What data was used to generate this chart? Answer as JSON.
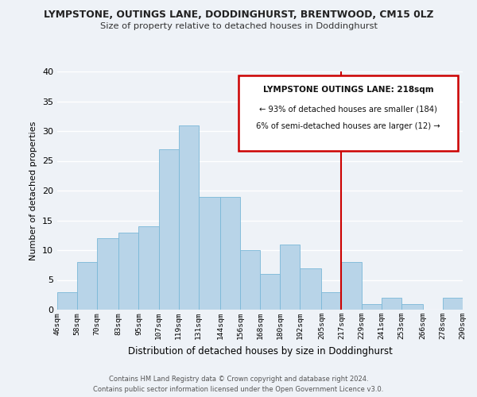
{
  "title_line1": "LYMPSTONE, OUTINGS LANE, DODDINGHURST, BRENTWOOD, CM15 0LZ",
  "title_line2": "Size of property relative to detached houses in Doddinghurst",
  "xlabel": "Distribution of detached houses by size in Doddinghurst",
  "ylabel": "Number of detached properties",
  "bin_edges": [
    46,
    58,
    70,
    83,
    95,
    107,
    119,
    131,
    144,
    156,
    168,
    180,
    192,
    205,
    217,
    229,
    241,
    253,
    266,
    278,
    290
  ],
  "bin_heights": [
    3,
    8,
    12,
    13,
    14,
    27,
    31,
    19,
    19,
    10,
    6,
    11,
    7,
    3,
    8,
    1,
    2,
    1,
    0,
    2
  ],
  "bar_color": "#b8d4e8",
  "bar_edge_color": "#7ab8d8",
  "vline_x": 217,
  "vline_color": "#cc0000",
  "ylim": [
    0,
    40
  ],
  "yticks": [
    0,
    5,
    10,
    15,
    20,
    25,
    30,
    35,
    40
  ],
  "x_tick_labels": [
    "46sqm",
    "58sqm",
    "70sqm",
    "83sqm",
    "95sqm",
    "107sqm",
    "119sqm",
    "131sqm",
    "144sqm",
    "156sqm",
    "168sqm",
    "180sqm",
    "192sqm",
    "205sqm",
    "217sqm",
    "229sqm",
    "241sqm",
    "253sqm",
    "266sqm",
    "278sqm",
    "290sqm"
  ],
  "annotation_title": "LYMPSTONE OUTINGS LANE: 218sqm",
  "annotation_line1": "← 93% of detached houses are smaller (184)",
  "annotation_line2": "6% of semi-detached houses are larger (12) →",
  "footer_line1": "Contains HM Land Registry data © Crown copyright and database right 2024.",
  "footer_line2": "Contains public sector information licensed under the Open Government Licence v3.0.",
  "background_color": "#eef2f7"
}
